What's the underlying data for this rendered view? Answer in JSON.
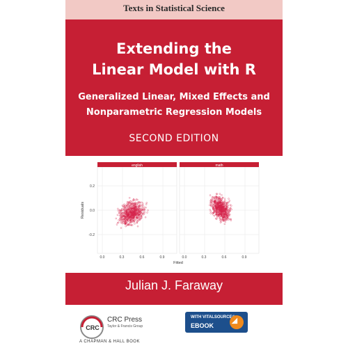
{
  "cover": {
    "series": "Texts in Statistical Science",
    "title_line1": "Extending the",
    "title_line2": "Linear Model with R",
    "subtitle_line1": "Generalized Linear, Mixed Effects and",
    "subtitle_line2": "Nonparametric Regression Models",
    "edition": "SECOND EDITION",
    "author": "Julian J. Faraway",
    "publisher_name": "CRC Press",
    "publisher_sub": "Taylor & Francis Group",
    "publisher_book": "A CHAPMAN & HALL BOOK",
    "ebook_line1": "WITH VITALSOURCE®",
    "ebook_line2": "EBOOK"
  },
  "plot": {
    "panels": [
      {
        "label": "english"
      },
      {
        "label": "math"
      }
    ],
    "xlabel": "Fitted",
    "ylabel": "Residuals",
    "x_ticks": [
      "0.0",
      "0.3",
      "0.6",
      "0.9"
    ],
    "y_ticks": [
      "0.2",
      "0.0",
      "-0.2"
    ],
    "point_color": "#d4234a",
    "strip_color": "#c61f34"
  }
}
